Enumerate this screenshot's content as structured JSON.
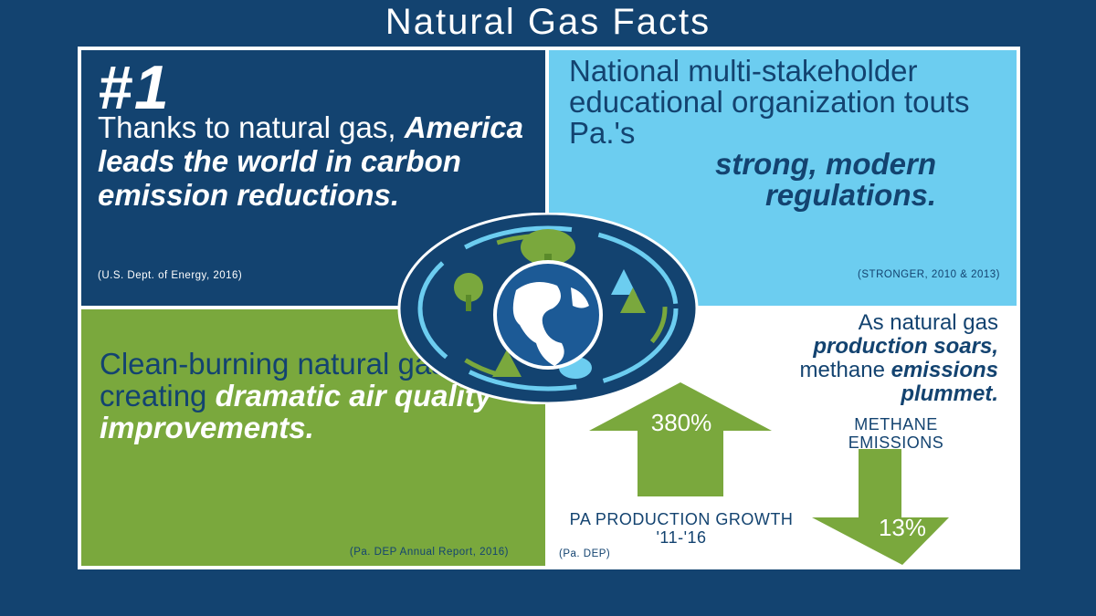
{
  "title": "Natural Gas Facts",
  "panel_energy": {
    "rank": "#1",
    "text_plain": "Thanks to natural gas,",
    "text_bold": "America leads the world in carbon emission reductions.",
    "citation": "(U.S. Dept. of Energy, 2016)"
  },
  "panel_regulations": {
    "text_plain": "National multi-stakeholder educational organization touts Pa.'s",
    "text_bold": "strong, modern regulations.",
    "citation": "(STRONGER, 2010 & 2013)"
  },
  "panel_air_quality": {
    "text_plain": "Clean-burning natural gas creating",
    "text_bold": "dramatic air quality improvements.",
    "citation": "(Pa. DEP Annual Report, 2016)"
  },
  "panel_methane": {
    "line1": "As natural gas",
    "line2_bold": "production soars,",
    "line3_plain": "methane",
    "line3_bold": "emissions",
    "line4_bold": "plummet.",
    "production_value": "380%",
    "production_label": "PA PRODUCTION GROWTH '11-'16",
    "methane_label": "METHANE EMISSIONS",
    "methane_value": "13%",
    "citation": "(Pa. DEP)"
  },
  "colors": {
    "navy": "#134370",
    "light_blue": "#6ccdf0",
    "green": "#7aa83d",
    "white": "#ffffff"
  },
  "emblem": {
    "description_icon": "globe-with-trees-icon"
  }
}
